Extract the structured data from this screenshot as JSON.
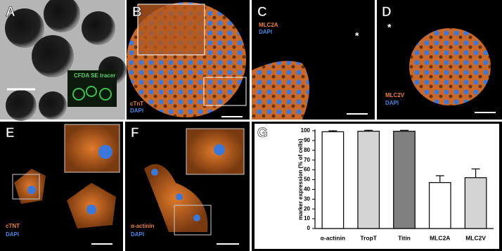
{
  "panels": [
    {
      "label": "A",
      "texts": [
        "CFDA SE tracer"
      ]
    },
    {
      "label": "B",
      "texts": [
        "cTnT",
        "DAPI"
      ]
    },
    {
      "label": "C",
      "texts": [
        "MLC2A",
        "DAPI",
        "*"
      ]
    },
    {
      "label": "D",
      "texts": [
        "*",
        "MLC2V",
        "DAPI"
      ]
    },
    {
      "label": "E",
      "texts": [
        "cTNT",
        "DAPI"
      ]
    },
    {
      "label": "F",
      "texts": [
        "α-actinin",
        "DAPI"
      ]
    },
    {
      "label": "G",
      "texts": []
    }
  ],
  "chart_data": {
    "type": "bar",
    "y_label": "marker expression (% of cells)",
    "categories": [
      "α-actinin",
      "TropT",
      "Titin",
      "MLC2A",
      "MLC2V"
    ],
    "values": [
      99,
      99.5,
      99.5,
      47,
      52
    ],
    "errors": [
      1,
      1,
      1,
      7,
      9
    ],
    "colors": [
      "#ffffff",
      "#d4d4d4",
      "#808080",
      "#ffffff",
      "#d4d4d4"
    ],
    "ylim": [
      0,
      100
    ],
    "yticks": [
      0,
      10,
      20,
      30,
      40,
      50,
      60,
      70,
      80,
      90,
      100
    ]
  }
}
